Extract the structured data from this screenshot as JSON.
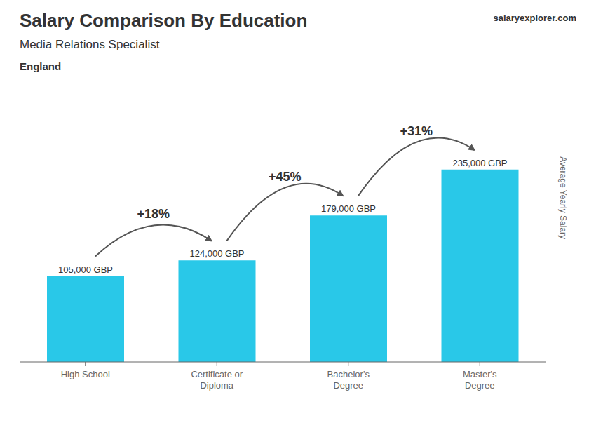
{
  "chart_data": {
    "type": "bar",
    "title": "Salary Comparison By Education",
    "subtitle": "Media Relations Specialist",
    "location": "England",
    "watermark": "salaryexplorer.com",
    "y_label": "Average Yearly Salary",
    "categories": [
      "High School",
      "Certificate or\nDiploma",
      "Bachelor's\nDegree",
      "Master's\nDegree"
    ],
    "values": [
      105000,
      124000,
      179000,
      235000
    ],
    "value_labels": [
      "105,000 GBP",
      "124,000 GBP",
      "179,000 GBP",
      "235,000 GBP"
    ],
    "data_labels": true,
    "pct_changes": [
      "+18%",
      "+45%",
      "+31%"
    ],
    "color": "#29C8E8",
    "ylim": [
      0,
      300000
    ],
    "grid": false,
    "tick_labels": "x"
  }
}
